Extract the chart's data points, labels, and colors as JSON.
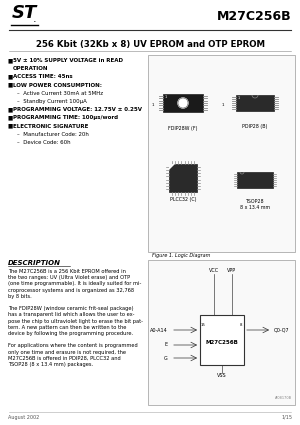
{
  "title_part": "M27C256B",
  "title_desc": "256 Kbit (32Kb x 8) UV EPROM and OTP EPROM",
  "footer_left": "August 2002",
  "footer_right": "1/15",
  "fig_label": "Figure 1. Logic Diagram",
  "desc_title": "DESCRIPTION",
  "bg_color": "#ffffff",
  "text_color": "#000000",
  "feature_lines": [
    [
      "bullet",
      "5V ± 10% SUPPLY VOLTAGE in READ"
    ],
    [
      "cont",
      "  OPERATION"
    ],
    [
      "bullet",
      "ACCESS TIME: 45ns"
    ],
    [
      "bullet",
      "LOW POWER CONSUMPTION:"
    ],
    [
      "sub",
      "–  Active Current 30mA at 5MHz"
    ],
    [
      "sub",
      "–  Standby Current 100μA"
    ],
    [
      "bullet",
      "PROGRAMMING VOLTAGE: 12.75V ± 0.25V"
    ],
    [
      "bullet",
      "PROGRAMMING TIME: 100μs/word"
    ],
    [
      "bullet",
      "ELECTRONIC SIGNATURE"
    ],
    [
      "sub",
      "–  Manufacturer Code: 20h"
    ],
    [
      "sub",
      "–  Device Code: 60h"
    ]
  ],
  "desc_lines": [
    "The M27C256B is a 256 Kbit EPROM offered in",
    "the two ranges: UV (Ultra Violet erase) and OTP",
    "(one time programmable). It is ideally suited for mi-",
    "croprocessor systems and is organized as 32,768",
    "by 8 bits.",
    "",
    "The FDIP28W (window ceramic frit-seal package)",
    "has a transparent lid which allows the user to ex-",
    "pose the chip to ultraviolet light to erase the bit pat-",
    "tern. A new pattern can then be written to the",
    "device by following the programming procedure.",
    "",
    "For applications where the content is programmed",
    "only one time and erasure is not required, the",
    "M27C256B is offered in PDIP28, PLCC32 and",
    "TSOP28 (8 x 13.4 mm) packages."
  ],
  "pkg_labels": [
    "FDIP28W (F)",
    "PDIP28 (B)",
    "PLCC32 (C)",
    "TSOP28\n8 x 13.4 mm"
  ]
}
